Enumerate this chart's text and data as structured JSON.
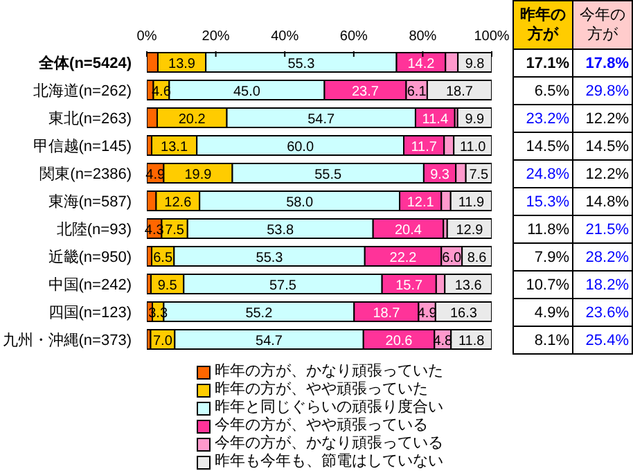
{
  "chart_data": [
    {
      "type": "bar",
      "orientation": "horizontal",
      "stacked": true,
      "legend": "bottom",
      "grid": false,
      "categories": [
        "全体(n=5424)",
        "北海道(n=262)",
        "東北(n=263)",
        "甲信越(n=145)",
        "関東(n=2386)",
        "東海(n=587)",
        "北陸(n=93)",
        "近畿(n=950)",
        "中国(n=242)",
        "四国(n=123)",
        "九州・沖縄(n=373)"
      ],
      "xlim": [
        0,
        100
      ],
      "xticks": [
        {
          "value": 0,
          "label": "0%"
        },
        {
          "value": 20,
          "label": "20%"
        },
        {
          "value": 40,
          "label": "40%"
        },
        {
          "value": 60,
          "label": "60%"
        },
        {
          "value": 80,
          "label": "80%"
        },
        {
          "value": 100,
          "label": "100%"
        }
      ],
      "series": [
        {
          "name": "昨年の方が、かなり頑張っていた",
          "color": "#ff6600",
          "values": [
            3.2,
            1.9,
            3.0,
            1.4,
            4.9,
            2.7,
            4.3,
            1.4,
            1.2,
            1.6,
            1.1
          ],
          "value_labels": [
            null,
            null,
            null,
            null,
            "4.9",
            null,
            "4.3",
            null,
            null,
            null,
            null
          ]
        },
        {
          "name": "昨年の方が、やや頑張っていた",
          "color": "#ffcc00",
          "values": [
            13.9,
            4.6,
            20.2,
            13.1,
            19.9,
            12.6,
            7.5,
            6.5,
            9.5,
            3.3,
            7.0
          ],
          "value_labels": [
            "13.9",
            "4.6",
            "20.2",
            "13.1",
            "19.9",
            "12.6",
            "7.5",
            "6.5",
            "9.5",
            "3.3",
            "7.0"
          ]
        },
        {
          "name": "昨年と同じぐらいの頑張り度合い",
          "color": "#ccffff",
          "values": [
            55.3,
            45.0,
            54.7,
            60.0,
            55.5,
            58.0,
            53.8,
            55.3,
            57.5,
            55.2,
            54.7
          ],
          "value_labels": [
            "55.3",
            "45.0",
            "54.7",
            "60.0",
            "55.5",
            "58.0",
            "53.8",
            "55.3",
            "57.5",
            "55.2",
            "54.7"
          ]
        },
        {
          "name": "今年の方が、やや頑張っている",
          "color": "#ff3399",
          "values": [
            14.2,
            23.7,
            11.4,
            11.7,
            9.3,
            12.1,
            20.4,
            22.2,
            15.7,
            18.7,
            20.6
          ],
          "value_labels": [
            "14.2",
            "23.7",
            "11.4",
            "11.7",
            "9.3",
            "12.1",
            "20.4",
            "22.2",
            "15.7",
            "18.7",
            "20.6"
          ]
        },
        {
          "name": "今年の方が、かなり頑張っている",
          "color": "#ff99cc",
          "values": [
            3.6,
            6.1,
            0.8,
            2.8,
            2.9,
            2.7,
            1.1,
            6.0,
            2.5,
            4.9,
            4.8
          ],
          "value_labels": [
            null,
            "6.1",
            null,
            null,
            null,
            null,
            null,
            "6.0",
            null,
            "4.9",
            "4.8"
          ]
        },
        {
          "name": "昨年も今年も、節電はしていない",
          "color": "#eaeaea",
          "values": [
            9.8,
            18.7,
            9.9,
            11.0,
            7.5,
            11.9,
            12.9,
            8.6,
            13.6,
            16.3,
            11.8
          ],
          "value_labels": [
            "9.8",
            "18.7",
            "9.9",
            "11.0",
            "7.5",
            "11.9",
            "12.9",
            "8.6",
            "13.6",
            "16.3",
            "11.8"
          ]
        }
      ]
    },
    {
      "type": "heatmap",
      "categories": [
        "昨年の方が",
        "今年の方が"
      ],
      "y_categories": [
        null,
        null,
        null,
        null,
        null,
        null,
        null,
        null,
        null,
        null,
        null
      ],
      "tick_labels": "x",
      "cells": [
        [
          17.1,
          17.8
        ],
        [
          6.5,
          29.8
        ],
        [
          23.2,
          12.2
        ],
        [
          14.5,
          14.5
        ],
        [
          24.8,
          12.2
        ],
        [
          15.3,
          14.8
        ],
        [
          11.8,
          21.5
        ],
        [
          7.9,
          28.2
        ],
        [
          10.7,
          18.2
        ],
        [
          4.9,
          23.6
        ],
        [
          8.1,
          25.4
        ]
      ],
      "cell_labels": [
        [
          "17.1%",
          "17.8%"
        ],
        [
          "6.5%",
          "29.8%"
        ],
        [
          "23.2%",
          "12.2%"
        ],
        [
          "14.5%",
          "14.5%"
        ],
        [
          "24.8%",
          "12.2%"
        ],
        [
          "15.3%",
          "14.8%"
        ],
        [
          "11.8%",
          "21.5%"
        ],
        [
          "7.9%",
          "28.2%"
        ],
        [
          "10.7%",
          "18.2%"
        ],
        [
          "4.9%",
          "23.6%"
        ],
        [
          "8.1%",
          "25.4%"
        ]
      ]
    }
  ]
}
